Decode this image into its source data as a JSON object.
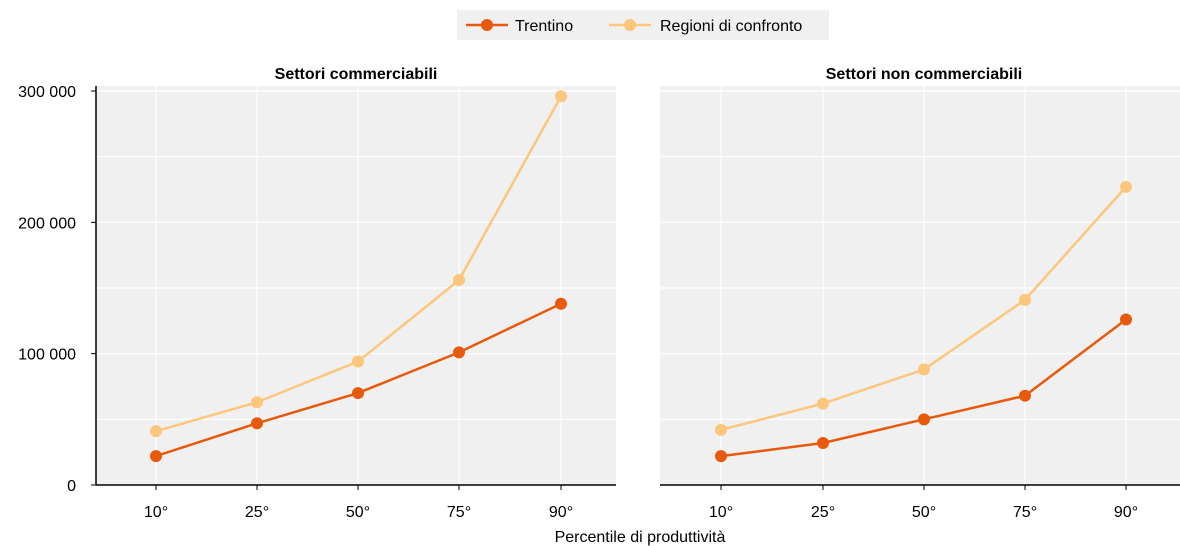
{
  "chart_data": {
    "type": "line",
    "xlabel": "Percentile di produttività",
    "ylim": [
      0,
      300000
    ],
    "yticks": [
      0,
      100000,
      200000,
      300000
    ],
    "ytick_labels": [
      "0",
      "100 000",
      "200 000",
      "300 000"
    ],
    "grid": true,
    "legend_position": "top-center",
    "legend": [
      {
        "name": "Trentino",
        "color": "#e8590c"
      },
      {
        "name": "Regioni di confronto",
        "color": "#fcc67c"
      }
    ],
    "panels": [
      {
        "title": "Settori commerciabili",
        "categories": [
          "10°",
          "25°",
          "50°",
          "75°",
          "90°"
        ],
        "series": [
          {
            "name": "Trentino",
            "color": "#e8590c",
            "values": [
              22000,
              47000,
              70000,
              101000,
              138000
            ]
          },
          {
            "name": "Regioni di confronto",
            "color": "#fcc67c",
            "values": [
              41000,
              63000,
              94000,
              156000,
              296000
            ]
          }
        ]
      },
      {
        "title": "Settori non commerciabili",
        "categories": [
          "10°",
          "25°",
          "50°",
          "75°",
          "90°"
        ],
        "series": [
          {
            "name": "Trentino",
            "color": "#e8590c",
            "values": [
              22000,
              32000,
              50000,
              68000,
              126000
            ]
          },
          {
            "name": "Regioni di confronto",
            "color": "#fcc67c",
            "values": [
              42000,
              62000,
              88000,
              141000,
              227000
            ]
          }
        ]
      }
    ]
  }
}
